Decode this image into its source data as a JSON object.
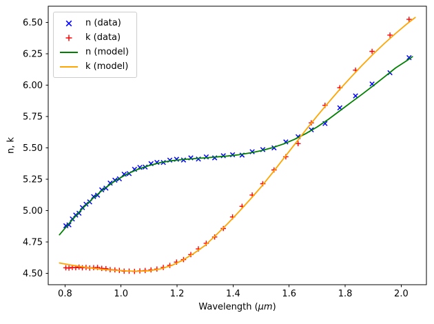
{
  "chart_data": {
    "type": "line",
    "title": "",
    "xlabel": "Wavelength (μm)",
    "xlabel_parts": {
      "prefix": "Wavelength (",
      "italic": "μm",
      "suffix": ")"
    },
    "ylabel": "n, k",
    "xlim": [
      0.74,
      2.09
    ],
    "ylim": [
      4.41,
      6.63
    ],
    "grid": false,
    "legend_position": "upper left",
    "background": "#ffffff",
    "axis_color": "#000000",
    "xtick_values": [
      0.8,
      1.0,
      1.2,
      1.4,
      1.6,
      1.8,
      2.0
    ],
    "xtick_labels": [
      "0.8",
      "1.0",
      "1.2",
      "1.4",
      "1.6",
      "1.8",
      "2.0"
    ],
    "ytick_values": [
      4.5,
      4.75,
      5.0,
      5.25,
      5.5,
      5.75,
      6.0,
      6.25,
      6.5
    ],
    "ytick_labels": [
      "4.50",
      "4.75",
      "5.00",
      "5.25",
      "5.50",
      "5.75",
      "6.00",
      "6.25",
      "6.50"
    ],
    "series": [
      {
        "name": "n (data)",
        "kind": "scatter",
        "marker": "x",
        "color": "#0000ff",
        "x": [
          0.803,
          0.814,
          0.826,
          0.838,
          0.85,
          0.862,
          0.875,
          0.888,
          0.902,
          0.916,
          0.931,
          0.946,
          0.961,
          0.978,
          0.994,
          1.011,
          1.029,
          1.048,
          1.067,
          1.086,
          1.107,
          1.128,
          1.151,
          1.174,
          1.198,
          1.223,
          1.249,
          1.276,
          1.304,
          1.334,
          1.365,
          1.398,
          1.432,
          1.468,
          1.506,
          1.546,
          1.588,
          1.632,
          1.679,
          1.728,
          1.781,
          1.837,
          1.896,
          1.96,
          2.028
        ],
        "y": [
          4.88,
          4.887,
          4.934,
          4.965,
          4.98,
          5.025,
          5.052,
          5.07,
          5.112,
          5.124,
          5.166,
          5.18,
          5.22,
          5.243,
          5.254,
          5.291,
          5.296,
          5.33,
          5.345,
          5.348,
          5.375,
          5.385,
          5.384,
          5.403,
          5.41,
          5.404,
          5.421,
          5.412,
          5.429,
          5.421,
          5.438,
          5.446,
          5.443,
          5.47,
          5.487,
          5.501,
          5.548,
          5.59,
          5.645,
          5.695,
          5.82,
          5.915,
          6.01,
          6.1,
          6.22
        ]
      },
      {
        "name": "k (data)",
        "kind": "scatter",
        "marker": "+",
        "color": "#ff0000",
        "x": [
          0.803,
          0.814,
          0.826,
          0.838,
          0.85,
          0.862,
          0.875,
          0.888,
          0.902,
          0.916,
          0.931,
          0.946,
          0.961,
          0.978,
          0.994,
          1.011,
          1.029,
          1.048,
          1.067,
          1.086,
          1.107,
          1.128,
          1.151,
          1.174,
          1.198,
          1.223,
          1.249,
          1.276,
          1.304,
          1.334,
          1.365,
          1.398,
          1.432,
          1.468,
          1.506,
          1.546,
          1.588,
          1.632,
          1.679,
          1.728,
          1.781,
          1.837,
          1.896,
          1.96,
          2.028
        ],
        "y": [
          4.545,
          4.543,
          4.548,
          4.546,
          4.55,
          4.545,
          4.548,
          4.543,
          4.546,
          4.548,
          4.54,
          4.538,
          4.53,
          4.528,
          4.524,
          4.518,
          4.518,
          4.516,
          4.52,
          4.523,
          4.528,
          4.535,
          4.548,
          4.564,
          4.59,
          4.61,
          4.65,
          4.695,
          4.74,
          4.79,
          4.858,
          4.95,
          5.035,
          5.125,
          5.215,
          5.325,
          5.43,
          5.535,
          5.7,
          5.84,
          5.98,
          6.12,
          6.27,
          6.4,
          6.525
        ]
      },
      {
        "name": "n (model)",
        "kind": "line",
        "color": "#008000",
        "x": [
          0.78,
          0.82,
          0.86,
          0.9,
          0.94,
          0.98,
          1.02,
          1.06,
          1.1,
          1.14,
          1.18,
          1.22,
          1.26,
          1.3,
          1.34,
          1.38,
          1.42,
          1.46,
          1.5,
          1.54,
          1.58,
          1.62,
          1.66,
          1.7,
          1.74,
          1.78,
          1.82,
          1.86,
          1.9,
          1.94,
          1.98,
          2.02,
          2.04
        ],
        "y": [
          4.808,
          4.912,
          5.012,
          5.1,
          5.176,
          5.24,
          5.291,
          5.33,
          5.36,
          5.383,
          5.398,
          5.408,
          5.415,
          5.421,
          5.428,
          5.436,
          5.446,
          5.46,
          5.478,
          5.502,
          5.532,
          5.57,
          5.615,
          5.668,
          5.728,
          5.795,
          5.862,
          5.928,
          5.996,
          6.066,
          6.138,
          6.196,
          6.228
        ]
      },
      {
        "name": "k (model)",
        "kind": "line",
        "color": "#ffa500",
        "x": [
          0.78,
          0.82,
          0.86,
          0.9,
          0.94,
          0.98,
          1.02,
          1.06,
          1.1,
          1.14,
          1.18,
          1.22,
          1.26,
          1.3,
          1.34,
          1.38,
          1.42,
          1.46,
          1.5,
          1.54,
          1.58,
          1.62,
          1.66,
          1.7,
          1.74,
          1.78,
          1.82,
          1.86,
          1.9,
          1.94,
          1.98,
          2.02,
          2.05
        ],
        "y": [
          4.583,
          4.567,
          4.553,
          4.541,
          4.531,
          4.525,
          4.52,
          4.517,
          4.521,
          4.536,
          4.563,
          4.605,
          4.66,
          4.723,
          4.808,
          4.896,
          4.99,
          5.088,
          5.19,
          5.3,
          5.415,
          5.53,
          5.645,
          5.755,
          5.862,
          5.965,
          6.063,
          6.158,
          6.248,
          6.333,
          6.413,
          6.488,
          6.54
        ]
      }
    ]
  }
}
